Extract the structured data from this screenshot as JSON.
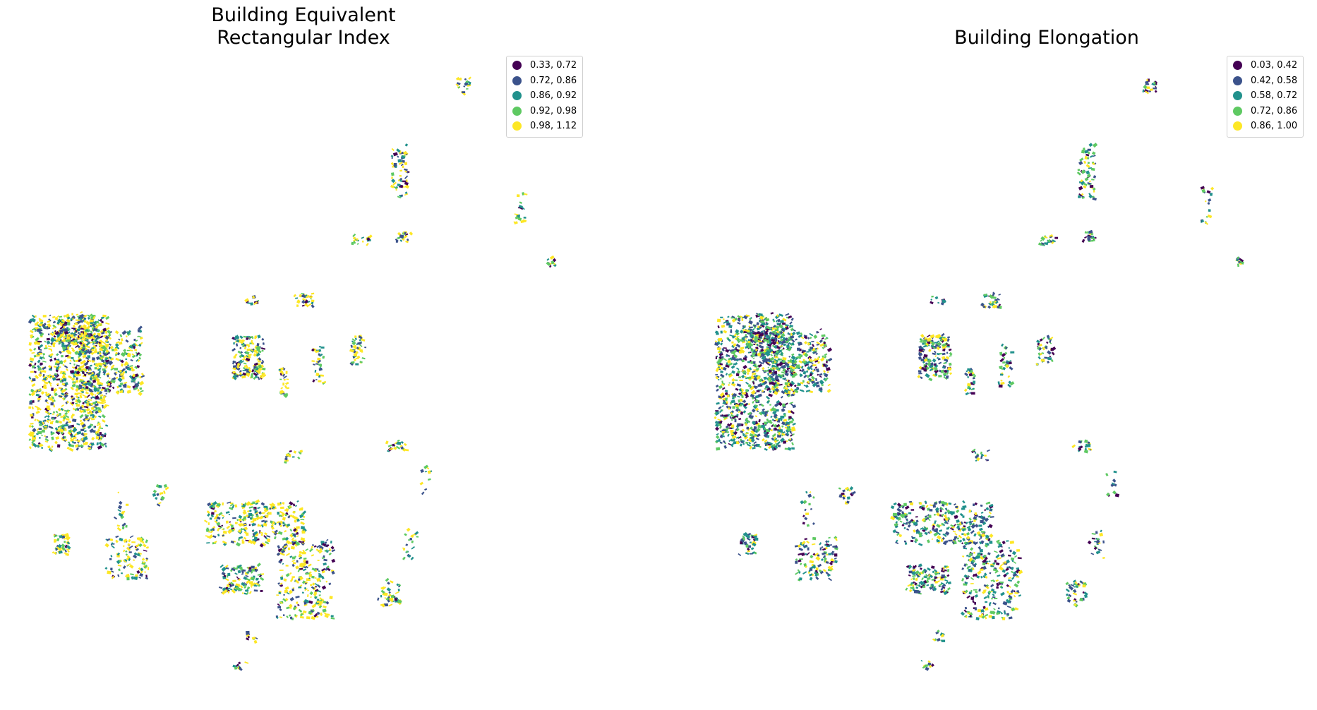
{
  "panels": [
    {
      "title": "Building Equivalent\nRectangular Index",
      "legend": [
        {
          "label": "0.33, 0.72",
          "color": "#440154"
        },
        {
          "label": "0.72, 0.86",
          "color": "#3b528b"
        },
        {
          "label": "0.86, 0.92",
          "color": "#21918c"
        },
        {
          "label": "0.92, 0.98",
          "color": "#5ec962"
        },
        {
          "label": "0.98, 1.12",
          "color": "#fde725"
        }
      ]
    },
    {
      "title": "Building Elongation",
      "legend": [
        {
          "label": "0.03, 0.42",
          "color": "#440154"
        },
        {
          "label": "0.42, 0.58",
          "color": "#3b528b"
        },
        {
          "label": "0.58, 0.72",
          "color": "#21918c"
        },
        {
          "label": "0.72, 0.86",
          "color": "#5ec962"
        },
        {
          "label": "0.86, 1.00",
          "color": "#fde725"
        }
      ]
    }
  ]
}
